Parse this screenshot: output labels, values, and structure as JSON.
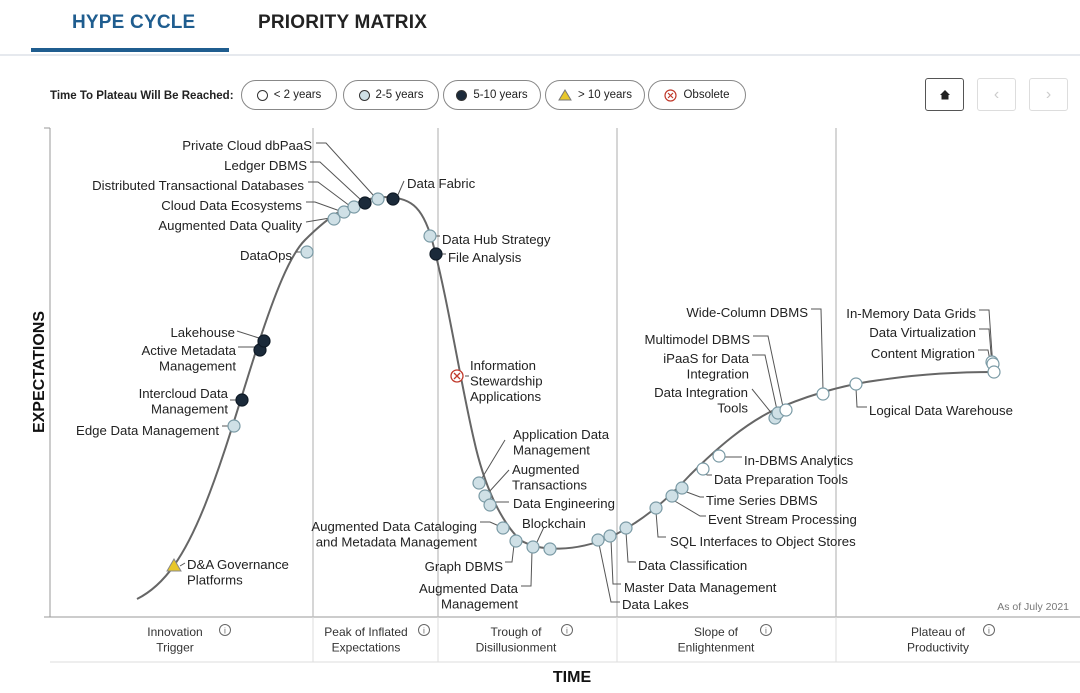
{
  "tabs": {
    "hype": "HYPE CYCLE",
    "priority": "PRIORITY MATRIX"
  },
  "legend": {
    "title": "Time To Plateau Will Be Reached:",
    "items": [
      {
        "label": "< 2 years",
        "symbol": "open-circle"
      },
      {
        "label": "2-5 years",
        "symbol": "light-circle"
      },
      {
        "label": "5-10 years",
        "symbol": "dark-circle"
      },
      {
        "label": "> 10 years",
        "symbol": "triangle"
      },
      {
        "label": "Obsolete",
        "symbol": "x-circle"
      }
    ]
  },
  "nav": {
    "home_icon": "home-icon",
    "prev_icon": "chevron-left-icon",
    "next_icon": "chevron-right-icon"
  },
  "colors": {
    "accent": "#1f5d8f",
    "dark": "#1b2a3a",
    "light": "#cfe0e6",
    "triangle": "#e8c72a",
    "obsolete": "#c0392b",
    "curve": "#666666"
  },
  "chart_data": {
    "type": "hype-cycle",
    "ylabel": "EXPECTATIONS",
    "xlabel": "TIME",
    "as_of": "As of July 2021",
    "phases": [
      {
        "name": "Innovation\nTrigger"
      },
      {
        "name": "Peak of Inflated\nExpectations"
      },
      {
        "name": "Trough of\nDisillusionment"
      },
      {
        "name": "Slope of\nEnlightenment"
      },
      {
        "name": "Plateau of\nProductivity"
      }
    ],
    "technologies": [
      {
        "name": "D&A Governance\nPlatforms",
        "category": "> 10 years"
      },
      {
        "name": "Edge Data Management",
        "category": "2-5 years"
      },
      {
        "name": "Intercloud Data\nManagement",
        "category": "5-10 years"
      },
      {
        "name": "Active Metadata\nManagement",
        "category": "5-10 years"
      },
      {
        "name": "Lakehouse",
        "category": "5-10 years"
      },
      {
        "name": "DataOps",
        "category": "2-5 years"
      },
      {
        "name": "Augmented Data Quality",
        "category": "2-5 years"
      },
      {
        "name": "Cloud Data Ecosystems",
        "category": "2-5 years"
      },
      {
        "name": "Distributed Transactional Databases",
        "category": "2-5 years"
      },
      {
        "name": "Ledger DBMS",
        "category": "5-10 years"
      },
      {
        "name": "Private Cloud dbPaaS",
        "category": "2-5 years"
      },
      {
        "name": "Data Fabric",
        "category": "5-10 years"
      },
      {
        "name": "Data Hub Strategy",
        "category": "2-5 years"
      },
      {
        "name": "File Analysis",
        "category": "5-10 years"
      },
      {
        "name": "Information\nStewardship\nApplications",
        "category": "Obsolete"
      },
      {
        "name": "Application Data\nManagement",
        "category": "2-5 years"
      },
      {
        "name": "Augmented\nTransactions",
        "category": "2-5 years"
      },
      {
        "name": "Data Engineering",
        "category": "2-5 years"
      },
      {
        "name": "Augmented Data Cataloging\nand Metadata Management",
        "category": "2-5 years"
      },
      {
        "name": "Graph DBMS",
        "category": "2-5 years"
      },
      {
        "name": "Blockchain",
        "category": "2-5 years"
      },
      {
        "name": "Augmented Data\nManagement",
        "category": "2-5 years"
      },
      {
        "name": "Data Lakes",
        "category": "2-5 years"
      },
      {
        "name": "Master Data Management",
        "category": "2-5 years"
      },
      {
        "name": "Data Classification",
        "category": "2-5 years"
      },
      {
        "name": "SQL Interfaces to Object Stores",
        "category": "2-5 years"
      },
      {
        "name": "Event Stream Processing",
        "category": "2-5 years"
      },
      {
        "name": "Time Series DBMS",
        "category": "2-5 years"
      },
      {
        "name": "Data Preparation Tools",
        "category": "< 2 years"
      },
      {
        "name": "In-DBMS Analytics",
        "category": "< 2 years"
      },
      {
        "name": "Data Integration\nTools",
        "category": "2-5 years"
      },
      {
        "name": "iPaaS for Data\nIntegration",
        "category": "2-5 years"
      },
      {
        "name": "Multimodel DBMS",
        "category": "< 2 years"
      },
      {
        "name": "Wide-Column DBMS",
        "category": "< 2 years"
      },
      {
        "name": "Logical Data Warehouse",
        "category": "< 2 years"
      },
      {
        "name": "Content Migration",
        "category": "< 2 years"
      },
      {
        "name": "Data Virtualization",
        "category": "< 2 years"
      },
      {
        "name": "In-Memory Data Grids",
        "category": "< 2 years"
      }
    ]
  }
}
